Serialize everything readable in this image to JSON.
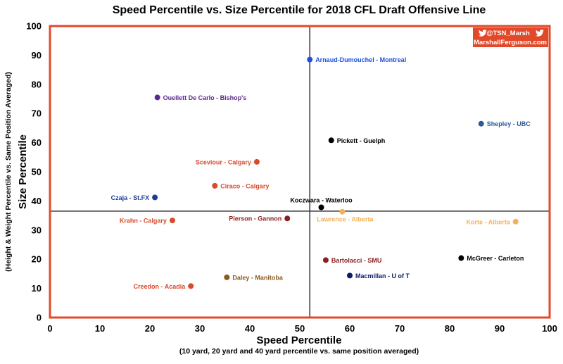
{
  "chart_data": {
    "type": "scatter",
    "title": "Speed Percentile vs. Size Percentile for 2018 CFL Draft Offensive Line",
    "xlabel": "Speed Percentile",
    "xlabel_sub": "(10 yard, 20 yard and 40 yard percentile vs. same position averaged)",
    "ylabel": "Size Percentile",
    "ylabel_sub": "(Height & Weight Percentile vs. Same Position Averaged)",
    "xlim": [
      0,
      100
    ],
    "ylim": [
      0,
      100
    ],
    "xticks": [
      0,
      10,
      20,
      30,
      40,
      50,
      60,
      70,
      80,
      90,
      100
    ],
    "yticks": [
      0,
      10,
      20,
      30,
      40,
      50,
      60,
      70,
      80,
      90,
      100
    ],
    "grid": false,
    "reference_lines": {
      "x": 52,
      "y": 36.5
    },
    "frame_color": "#e2492a",
    "points": [
      {
        "label": "Arnaud-Dumouchel - Montreal",
        "x": 52,
        "y": 88.5,
        "color": "#1e4fe0",
        "label_side": "right"
      },
      {
        "label": "Ouellett De Carlo - Bishop's",
        "x": 21.5,
        "y": 75.5,
        "color": "#5a2a8c",
        "label_side": "right"
      },
      {
        "label": "Shepley - UBC",
        "x": 86.3,
        "y": 66.5,
        "color": "#2a5a9a",
        "label_side": "right"
      },
      {
        "label": "Pickett - Guelph",
        "x": 56.3,
        "y": 60.8,
        "color": "#000000",
        "label_side": "right"
      },
      {
        "label": "Sceviour - Calgary",
        "x": 41.4,
        "y": 53.4,
        "color": "#d9492b",
        "label_side": "left"
      },
      {
        "label": "Ciraco - Calgary",
        "x": 33,
        "y": 45.2,
        "color": "#d9492b",
        "label_side": "right"
      },
      {
        "label": "Czaja - St.FX",
        "x": 21,
        "y": 41.2,
        "color": "#1d3c96",
        "label_side": "left"
      },
      {
        "label": "Koczwara - Waterloo",
        "x": 54.3,
        "y": 37.8,
        "color": "#000000",
        "label_side": "above"
      },
      {
        "label": "Lawrence - Alberta",
        "x": 58.5,
        "y": 36.3,
        "color": "#f0b35a",
        "label_side": "below"
      },
      {
        "label": "Krahn - Calgary",
        "x": 24.5,
        "y": 33.3,
        "color": "#d9492b",
        "label_side": "left"
      },
      {
        "label": "Pierson - Gannon",
        "x": 47.5,
        "y": 34,
        "color": "#8b1f1f",
        "label_side": "left"
      },
      {
        "label": "Korte - Alberta",
        "x": 93.2,
        "y": 32.9,
        "color": "#f0b35a",
        "label_side": "left"
      },
      {
        "label": "Bartolacci - SMU",
        "x": 55.2,
        "y": 19.7,
        "color": "#8b1f1f",
        "label_side": "right"
      },
      {
        "label": "McGreer - Carleton",
        "x": 82.3,
        "y": 20.4,
        "color": "#000000",
        "label_side": "right"
      },
      {
        "label": "Daley - Manitoba",
        "x": 35.4,
        "y": 13.8,
        "color": "#8b5a1e",
        "label_side": "right"
      },
      {
        "label": "Macmillan - U of T",
        "x": 60,
        "y": 14.4,
        "color": "#0d1a66",
        "label_side": "right"
      },
      {
        "label": "Creedon - Acadia",
        "x": 28.2,
        "y": 10.8,
        "color": "#d9492b",
        "label_side": "left"
      }
    ]
  },
  "credit": {
    "twitter_handle": "@TSN_Marsh",
    "website": "MarshallFerguson.com",
    "bird_icon": "twitter-bird-icon",
    "color": "#e2492a"
  }
}
